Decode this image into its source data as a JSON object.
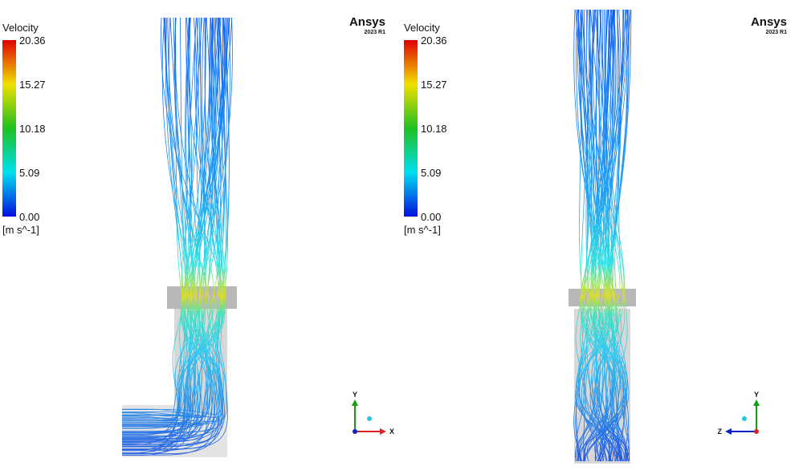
{
  "panels": [
    {
      "legend": {
        "title": "Velocity",
        "ticks": [
          "20.36",
          "15.27",
          "10.18",
          "5.09",
          "0.00"
        ],
        "units": "[m s^-1]"
      },
      "logo": {
        "name": "Ansys",
        "version": "2023 R1"
      },
      "triad": {
        "up": "Y",
        "side": "X"
      }
    },
    {
      "legend": {
        "title": "Velocity",
        "ticks": [
          "20.36",
          "15.27",
          "10.18",
          "5.09",
          "0.00"
        ],
        "units": "[m s^-1]"
      },
      "logo": {
        "name": "Ansys",
        "version": "2023 R1"
      },
      "triad": {
        "up": "Y",
        "side": "Z"
      }
    }
  ]
}
